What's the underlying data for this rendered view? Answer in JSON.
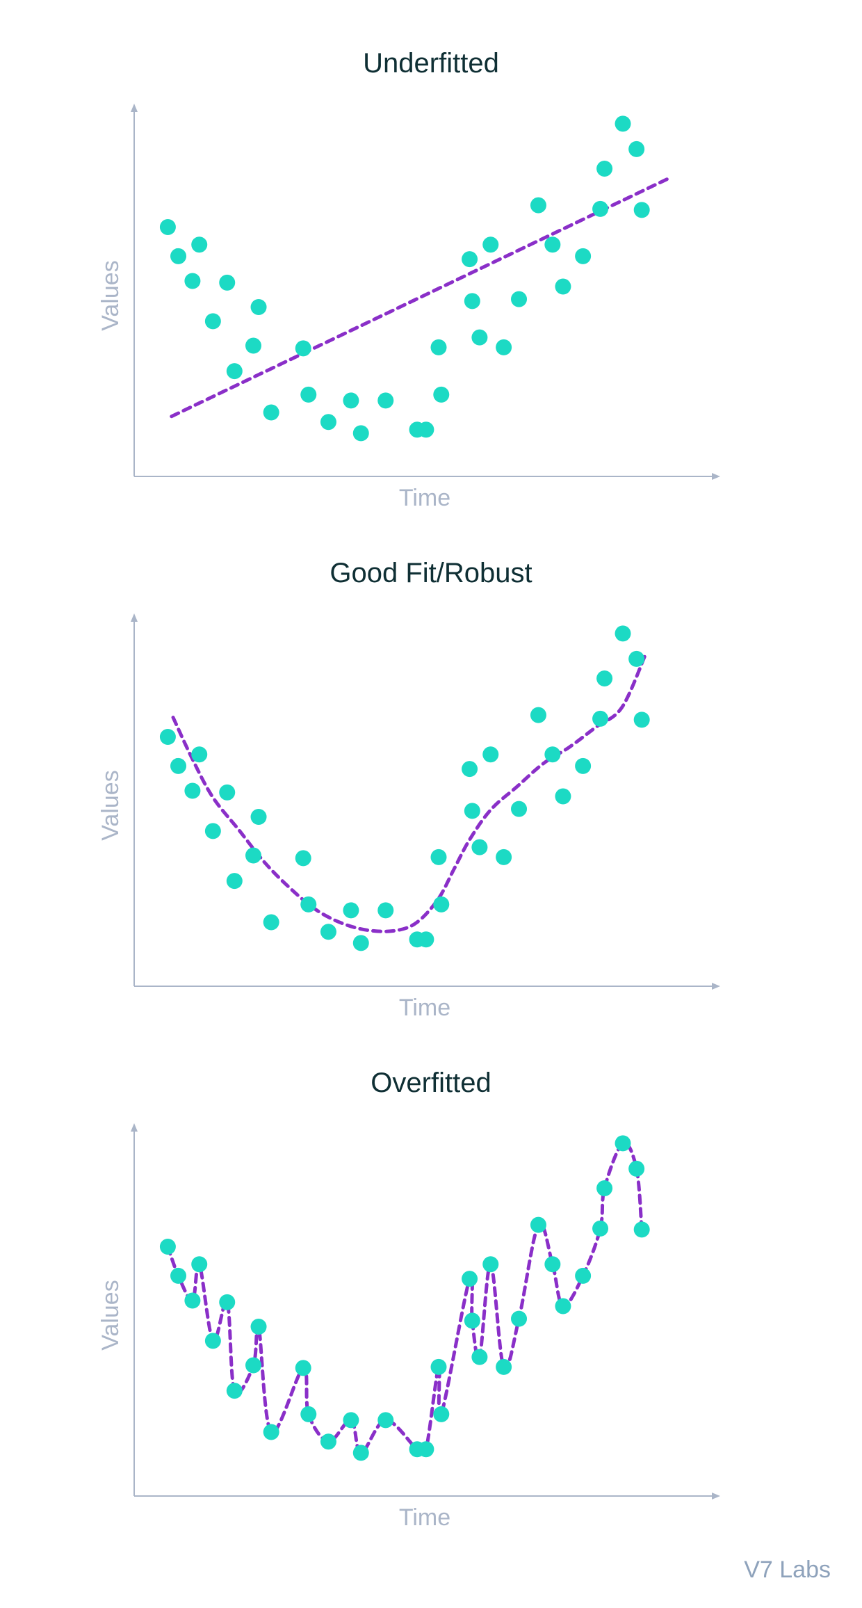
{
  "credit": "V7 Labs",
  "colors": {
    "point": "#1cdac4",
    "fit_line": "#8a2fc8",
    "axis": "#aab5c8",
    "title": "#0f2f34",
    "credit": "#8ea2bb"
  },
  "chart_data": [
    {
      "type": "scatter",
      "title": "Underfitted",
      "xlabel": "Time",
      "ylabel": "Values",
      "xlim": [
        0,
        100
      ],
      "ylim": [
        0,
        100
      ],
      "grid": false,
      "points": {
        "x": [
          3.5,
          5.5,
          8.2,
          9.5,
          12.1,
          14.8,
          16.2,
          19.8,
          20.8,
          23.2,
          29.3,
          30.3,
          34.1,
          38.4,
          40.3,
          45,
          51,
          52.7,
          55.1,
          55.6,
          61,
          61.5,
          62.9,
          65,
          67.5,
          70.4,
          74.1,
          76.8,
          78.8,
          82.6,
          85.9,
          86.7,
          90.2,
          92.8,
          93.8
        ],
        "y": [
          68.1,
          59.3,
          51.8,
          62.8,
          39.6,
          51.3,
          24.5,
          32.2,
          43.9,
          12,
          31.4,
          17.4,
          9.1,
          15.6,
          5.7,
          15.6,
          6.8,
          6.8,
          31.7,
          17.4,
          58.4,
          45.7,
          34.7,
          62.8,
          31.7,
          46.3,
          74.7,
          62.8,
          50.1,
          59.3,
          73.6,
          85.8,
          99.4,
          91.7,
          73.3
        ]
      },
      "fit": {
        "style": "dashed",
        "x": [
          4.2,
          99
        ],
        "y": [
          10.8,
          82.9
        ]
      }
    },
    {
      "type": "scatter",
      "title": "Good Fit/Robust",
      "xlabel": "Time",
      "ylabel": "Values",
      "xlim": [
        0,
        100
      ],
      "ylim": [
        0,
        100
      ],
      "grid": false,
      "points": {
        "x": [
          3.5,
          5.5,
          8.2,
          9.5,
          12.1,
          14.8,
          16.2,
          19.8,
          20.8,
          23.2,
          29.3,
          30.3,
          34.1,
          38.4,
          40.3,
          45,
          51,
          52.7,
          55.1,
          55.6,
          61,
          61.5,
          62.9,
          65,
          67.5,
          70.4,
          74.1,
          76.8,
          78.8,
          82.6,
          85.9,
          86.7,
          90.2,
          92.8,
          93.8
        ],
        "y": [
          68.1,
          59.3,
          51.8,
          62.8,
          39.6,
          51.3,
          24.5,
          32.2,
          43.9,
          12,
          31.4,
          17.4,
          9.1,
          15.6,
          5.7,
          15.6,
          6.8,
          6.8,
          31.7,
          17.4,
          58.4,
          45.7,
          34.7,
          62.8,
          31.7,
          46.3,
          74.7,
          62.8,
          50.1,
          59.3,
          73.6,
          85.8,
          99.4,
          91.7,
          73.3
        ]
      },
      "fit": {
        "style": "dashed",
        "x": [
          4.5,
          8,
          12,
          17,
          22,
          27,
          32,
          37,
          42,
          47,
          51,
          55,
          58,
          61,
          65,
          70,
          75,
          80,
          85,
          90,
          94.5
        ],
        "y": [
          74,
          62,
          50,
          40,
          30,
          22,
          15.5,
          11.5,
          9.5,
          9.5,
          12,
          19,
          28,
          37,
          46,
          53,
          60,
          65,
          71,
          77,
          93
        ]
      }
    },
    {
      "type": "scatter",
      "title": "Overfitted",
      "xlabel": "Time",
      "ylabel": "Values",
      "xlim": [
        0,
        100
      ],
      "ylim": [
        0,
        100
      ],
      "grid": false,
      "points": {
        "x": [
          3.5,
          5.5,
          8.2,
          9.5,
          12.1,
          14.8,
          16.2,
          19.8,
          20.8,
          23.2,
          29.3,
          30.3,
          34.1,
          38.4,
          40.3,
          45,
          51,
          52.7,
          55.1,
          55.6,
          61,
          61.5,
          62.9,
          65,
          67.5,
          70.4,
          74.1,
          76.8,
          78.8,
          82.6,
          85.9,
          86.7,
          90.2,
          92.8,
          93.8
        ],
        "y": [
          68.1,
          59.3,
          51.8,
          62.8,
          39.6,
          51.3,
          24.5,
          32.2,
          43.9,
          12,
          31.4,
          17.4,
          9.1,
          15.6,
          5.7,
          15.6,
          6.8,
          6.8,
          31.7,
          17.4,
          58.4,
          45.7,
          34.7,
          62.8,
          31.7,
          46.3,
          74.7,
          62.8,
          50.1,
          59.3,
          73.6,
          85.8,
          99.4,
          91.7,
          73.3
        ]
      },
      "fit": {
        "style": "dashed",
        "x": [
          3.5,
          5.5,
          8.2,
          9.5,
          12.1,
          14.8,
          16.2,
          19.8,
          20.8,
          23.2,
          29.3,
          30.3,
          34.1,
          38.4,
          40.3,
          45,
          51,
          52.7,
          55.1,
          55.6,
          61,
          61.5,
          62.9,
          65,
          67.5,
          70.4,
          74.1,
          76.8,
          78.8,
          82.6,
          85.9,
          86.7,
          90.2,
          92.8,
          93.8
        ],
        "y": [
          68.1,
          59.3,
          51.8,
          62.8,
          39.6,
          51.3,
          24.5,
          32.2,
          43.9,
          12,
          31.4,
          17.4,
          9.1,
          15.6,
          5.7,
          15.6,
          6.8,
          6.8,
          31.7,
          17.4,
          58.4,
          45.7,
          34.7,
          62.8,
          31.7,
          46.3,
          74.7,
          62.8,
          50.1,
          59.3,
          73.6,
          85.8,
          99.4,
          91.7,
          73.3
        ]
      }
    }
  ]
}
